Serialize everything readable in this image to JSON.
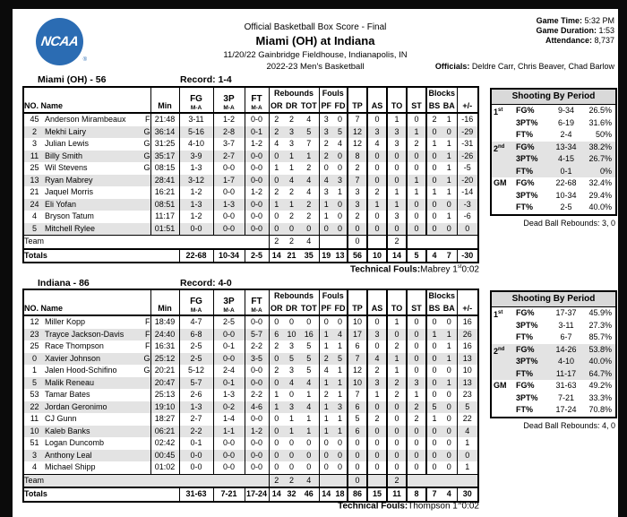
{
  "page": {
    "logo": {
      "text": "NCAA",
      "color": "#2b6cb3",
      "registered": "®"
    },
    "title": "Official Basketball Box Score - Final",
    "matchup": "Miami (OH) at Indiana",
    "venue": "11/20/22 Gainbridge Fieldhouse, Indianapolis, IN",
    "season": "2022-23 Men's Basketball",
    "game_info": [
      {
        "label": "Game Time:",
        "value": "5:32 PM"
      },
      {
        "label": "Game Duration:",
        "value": "1:53"
      },
      {
        "label": "Attendance:",
        "value": "8,737"
      }
    ],
    "officials_label": "Officials:",
    "officials": " Deldre Carr, Chris Beaver, Chad Barlow"
  },
  "table_headers": {
    "no_name": "NO. Name",
    "min": "Min",
    "fg": "FG",
    "p3": "3P",
    "ft": "FT",
    "ma": "M-A",
    "rebounds": "Rebounds",
    "or": "OR",
    "dr": "DR",
    "tot": "TOT",
    "fouls": "Fouls",
    "pf": "PF",
    "fd": "FD",
    "tp": "TP",
    "as": "AS",
    "to": "TO",
    "st": "ST",
    "blocks": "Blocks",
    "bs": "BS",
    "ba": "BA",
    "plus_minus": "+/-",
    "team_label": "Team",
    "totals_label": "Totals"
  },
  "teams": [
    {
      "heading": "Miami (OH) - 56",
      "record": "Record: 1-4",
      "players": [
        [
          "45",
          "Anderson Mirambeaux",
          "F",
          "21:48",
          "3-11",
          "1-2",
          "0-0",
          "2",
          "2",
          "4",
          "3",
          "0",
          "7",
          "0",
          "1",
          "0",
          "2",
          "1",
          "-16"
        ],
        [
          "2",
          "Mekhi Lairy",
          "G",
          "36:14",
          "5-16",
          "2-8",
          "0-1",
          "2",
          "3",
          "5",
          "3",
          "5",
          "12",
          "3",
          "3",
          "1",
          "0",
          "0",
          "-29"
        ],
        [
          "3",
          "Julian Lewis",
          "G",
          "31:25",
          "4-10",
          "3-7",
          "1-2",
          "4",
          "3",
          "7",
          "2",
          "4",
          "12",
          "4",
          "3",
          "2",
          "1",
          "1",
          "-31"
        ],
        [
          "11",
          "Billy Smith",
          "G",
          "35:17",
          "3-9",
          "2-7",
          "0-0",
          "0",
          "1",
          "1",
          "2",
          "0",
          "8",
          "0",
          "0",
          "0",
          "0",
          "1",
          "-26"
        ],
        [
          "25",
          "Wil Stevens",
          "G",
          "08:15",
          "1-3",
          "0-0",
          "0-0",
          "1",
          "1",
          "2",
          "0",
          "0",
          "2",
          "0",
          "0",
          "0",
          "0",
          "1",
          "-5"
        ],
        [
          "13",
          "Ryan Mabrey",
          "",
          "28:41",
          "3-12",
          "1-7",
          "0-0",
          "0",
          "4",
          "4",
          "4",
          "3",
          "7",
          "0",
          "0",
          "1",
          "0",
          "1",
          "-20"
        ],
        [
          "21",
          "Jaquel Morris",
          "",
          "16:21",
          "1-2",
          "0-0",
          "1-2",
          "2",
          "2",
          "4",
          "3",
          "1",
          "3",
          "2",
          "1",
          "1",
          "1",
          "1",
          "-14"
        ],
        [
          "24",
          "Eli Yofan",
          "",
          "08:51",
          "1-3",
          "1-3",
          "0-0",
          "1",
          "1",
          "2",
          "1",
          "0",
          "3",
          "1",
          "1",
          "0",
          "0",
          "0",
          "-3"
        ],
        [
          "4",
          "Bryson Tatum",
          "",
          "11:17",
          "1-2",
          "0-0",
          "0-0",
          "0",
          "2",
          "2",
          "1",
          "0",
          "2",
          "0",
          "3",
          "0",
          "0",
          "1",
          "-6"
        ],
        [
          "5",
          "Mitchell Rylee",
          "",
          "01:51",
          "0-0",
          "0-0",
          "0-0",
          "0",
          "0",
          "0",
          "0",
          "0",
          "0",
          "0",
          "0",
          "0",
          "0",
          "0",
          "0"
        ]
      ],
      "team_row": {
        "or": "2",
        "dr": "2",
        "tot": "4",
        "tp": "0",
        "to": "2"
      },
      "totals": [
        "22-68",
        "10-34",
        "2-5",
        "14",
        "21",
        "35",
        "19",
        "13",
        "56",
        "10",
        "14",
        "5",
        "4",
        "7",
        "-30"
      ],
      "technical_fouls": {
        "label": "Technical Fouls:",
        "player": "Mabrey 1",
        "sup": "st",
        "time": "0:02"
      },
      "shooting": {
        "title": "Shooting By Period",
        "rows": [
          {
            "period": "1",
            "sup": "st",
            "stat": "FG%",
            "ma": "9-34",
            "pct": "26.5%"
          },
          {
            "period": "",
            "sup": "",
            "stat": "3PT%",
            "ma": "6-19",
            "pct": "31.6%"
          },
          {
            "period": "",
            "sup": "",
            "stat": "FT%",
            "ma": "2-4",
            "pct": "50%"
          },
          {
            "period": "2",
            "sup": "nd",
            "stat": "FG%",
            "ma": "13-34",
            "pct": "38.2%"
          },
          {
            "period": "",
            "sup": "",
            "stat": "3PT%",
            "ma": "4-15",
            "pct": "26.7%"
          },
          {
            "period": "",
            "sup": "",
            "stat": "FT%",
            "ma": "0-1",
            "pct": "0%"
          },
          {
            "period": "GM",
            "sup": "",
            "stat": "FG%",
            "ma": "22-68",
            "pct": "32.4%"
          },
          {
            "period": "",
            "sup": "",
            "stat": "3PT%",
            "ma": "10-34",
            "pct": "29.4%"
          },
          {
            "period": "",
            "sup": "",
            "stat": "FT%",
            "ma": "2-5",
            "pct": "40.0%"
          }
        ],
        "dead_ball": "Dead Ball Rebounds: 3, 0"
      }
    },
    {
      "heading": "Indiana - 86",
      "record": "Record: 4-0",
      "players": [
        [
          "12",
          "Miller Kopp",
          "F",
          "18:49",
          "4-7",
          "2-5",
          "0-0",
          "0",
          "0",
          "0",
          "0",
          "0",
          "10",
          "0",
          "1",
          "0",
          "0",
          "0",
          "16"
        ],
        [
          "23",
          "Trayce Jackson-Davis",
          "F",
          "24:40",
          "6-8",
          "0-0",
          "5-7",
          "6",
          "10",
          "16",
          "1",
          "4",
          "17",
          "3",
          "0",
          "0",
          "1",
          "1",
          "26"
        ],
        [
          "25",
          "Race Thompson",
          "F",
          "16:31",
          "2-5",
          "0-1",
          "2-2",
          "2",
          "3",
          "5",
          "1",
          "1",
          "6",
          "0",
          "2",
          "0",
          "0",
          "1",
          "16"
        ],
        [
          "0",
          "Xavier Johnson",
          "G",
          "25:12",
          "2-5",
          "0-0",
          "3-5",
          "0",
          "5",
          "5",
          "2",
          "5",
          "7",
          "4",
          "1",
          "0",
          "0",
          "1",
          "13"
        ],
        [
          "1",
          "Jalen Hood-Schifino",
          "G",
          "20:21",
          "5-12",
          "2-4",
          "0-0",
          "2",
          "3",
          "5",
          "4",
          "1",
          "12",
          "2",
          "1",
          "0",
          "0",
          "0",
          "10"
        ],
        [
          "5",
          "Malik Reneau",
          "",
          "20:47",
          "5-7",
          "0-1",
          "0-0",
          "0",
          "4",
          "4",
          "1",
          "1",
          "10",
          "3",
          "2",
          "3",
          "0",
          "1",
          "13"
        ],
        [
          "53",
          "Tamar Bates",
          "",
          "25:13",
          "2-6",
          "1-3",
          "2-2",
          "1",
          "0",
          "1",
          "2",
          "1",
          "7",
          "1",
          "2",
          "1",
          "0",
          "0",
          "23"
        ],
        [
          "22",
          "Jordan Geronimo",
          "",
          "19:10",
          "1-3",
          "0-2",
          "4-6",
          "1",
          "3",
          "4",
          "1",
          "3",
          "6",
          "0",
          "0",
          "2",
          "5",
          "0",
          "5"
        ],
        [
          "11",
          "CJ Gunn",
          "",
          "18:27",
          "2-7",
          "1-4",
          "0-0",
          "0",
          "1",
          "1",
          "1",
          "1",
          "5",
          "2",
          "0",
          "2",
          "1",
          "0",
          "22"
        ],
        [
          "10",
          "Kaleb Banks",
          "",
          "06:21",
          "2-2",
          "1-1",
          "1-2",
          "0",
          "1",
          "1",
          "1",
          "1",
          "6",
          "0",
          "0",
          "0",
          "0",
          "0",
          "4"
        ],
        [
          "51",
          "Logan Duncomb",
          "",
          "02:42",
          "0-1",
          "0-0",
          "0-0",
          "0",
          "0",
          "0",
          "0",
          "0",
          "0",
          "0",
          "0",
          "0",
          "0",
          "0",
          "1"
        ],
        [
          "3",
          "Anthony Leal",
          "",
          "00:45",
          "0-0",
          "0-0",
          "0-0",
          "0",
          "0",
          "0",
          "0",
          "0",
          "0",
          "0",
          "0",
          "0",
          "0",
          "0",
          "0"
        ],
        [
          "4",
          "Michael Shipp",
          "",
          "01:02",
          "0-0",
          "0-0",
          "0-0",
          "0",
          "0",
          "0",
          "0",
          "0",
          "0",
          "0",
          "0",
          "0",
          "0",
          "0",
          "1"
        ]
      ],
      "team_row": {
        "or": "2",
        "dr": "2",
        "tot": "4",
        "tp": "0",
        "to": "2"
      },
      "totals": [
        "31-63",
        "7-21",
        "17-24",
        "14",
        "32",
        "46",
        "14",
        "18",
        "86",
        "15",
        "11",
        "8",
        "7",
        "4",
        "30"
      ],
      "technical_fouls": {
        "label": "Technical Fouls:",
        "player": "Thompson 1",
        "sup": "st",
        "time": "0:02"
      },
      "shooting": {
        "title": "Shooting By Period",
        "rows": [
          {
            "period": "1",
            "sup": "st",
            "stat": "FG%",
            "ma": "17-37",
            "pct": "45.9%"
          },
          {
            "period": "",
            "sup": "",
            "stat": "3PT%",
            "ma": "3-11",
            "pct": "27.3%"
          },
          {
            "period": "",
            "sup": "",
            "stat": "FT%",
            "ma": "6-7",
            "pct": "85.7%"
          },
          {
            "period": "2",
            "sup": "nd",
            "stat": "FG%",
            "ma": "14-26",
            "pct": "53.8%"
          },
          {
            "period": "",
            "sup": "",
            "stat": "3PT%",
            "ma": "4-10",
            "pct": "40.0%"
          },
          {
            "period": "",
            "sup": "",
            "stat": "FT%",
            "ma": "11-17",
            "pct": "64.7%"
          },
          {
            "period": "GM",
            "sup": "",
            "stat": "FG%",
            "ma": "31-63",
            "pct": "49.2%"
          },
          {
            "period": "",
            "sup": "",
            "stat": "3PT%",
            "ma": "7-21",
            "pct": "33.3%"
          },
          {
            "period": "",
            "sup": "",
            "stat": "FT%",
            "ma": "17-24",
            "pct": "70.8%"
          }
        ],
        "dead_ball": "Dead Ball Rebounds: 4, 0"
      }
    }
  ]
}
